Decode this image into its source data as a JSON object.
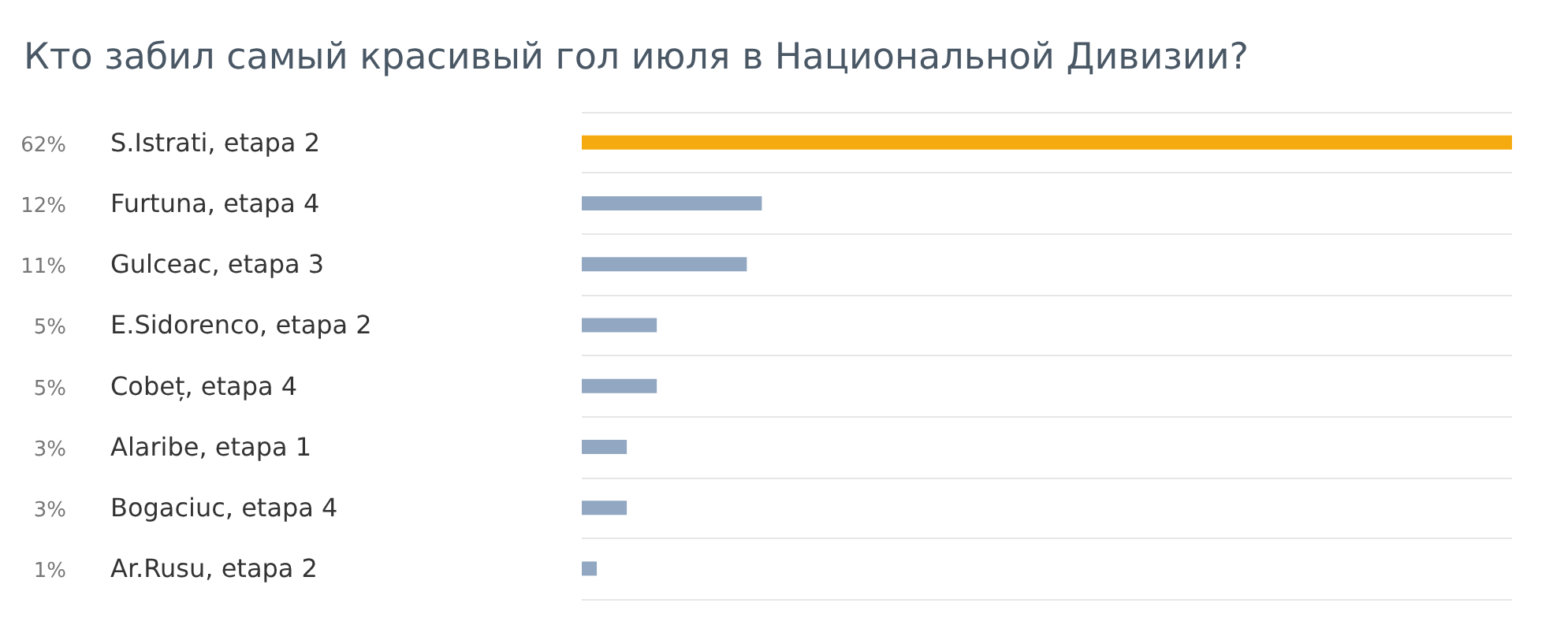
{
  "chart_data": {
    "type": "bar",
    "orientation": "horizontal",
    "title": "Кто забил самый красивый гол июля в Национальной Дивизии?",
    "categories": [
      "S.Istrati, etapa 2",
      "Furtuna, etapa 4",
      "Gulceac, etapa 3",
      "E.Sidorenco, etapa 2",
      "Cobeț, etapa 4",
      "Alaribe, etapa 1",
      "Bogaciuc, etapa 4",
      "Ar.Rusu, etapa 2"
    ],
    "values": [
      62,
      12,
      11,
      5,
      5,
      3,
      3,
      1
    ],
    "value_labels": [
      "62%",
      "12%",
      "11%",
      "5%",
      "5%",
      "3%",
      "3%",
      "1%"
    ],
    "colors": [
      "#f5ab10",
      "#91a7c2",
      "#91a7c2",
      "#91a7c2",
      "#91a7c2",
      "#91a7c2",
      "#91a7c2",
      "#91a7c2"
    ],
    "grid": "y"
  }
}
